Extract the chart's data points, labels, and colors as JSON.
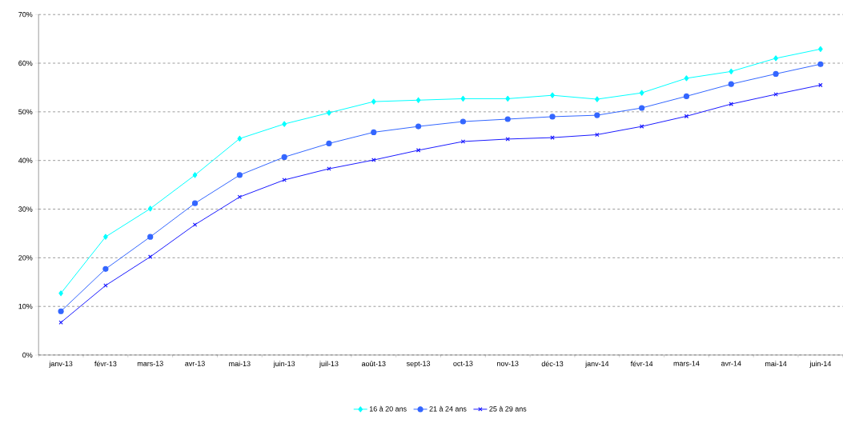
{
  "chart_data": {
    "type": "line",
    "categories": [
      "janv-13",
      "févr-13",
      "mars-13",
      "avr-13",
      "mai-13",
      "juin-13",
      "juil-13",
      "août-13",
      "sept-13",
      "oct-13",
      "nov-13",
      "déc-13",
      "janv-14",
      "févr-14",
      "mars-14",
      "avr-14",
      "mai-14",
      "juin-14"
    ],
    "series": [
      {
        "name": "16 à 20 ans",
        "color": "#00ffff",
        "marker": "diamond",
        "values": [
          12.7,
          24.3,
          30.1,
          37.0,
          44.5,
          47.5,
          49.8,
          52.1,
          52.4,
          52.7,
          52.7,
          53.4,
          52.6,
          53.9,
          56.9,
          58.3,
          61.0,
          62.9
        ]
      },
      {
        "name": "21 à 24 ans",
        "color": "#3366ff",
        "marker": "circle",
        "values": [
          9.0,
          17.7,
          24.3,
          31.2,
          37.0,
          40.7,
          43.5,
          45.8,
          47.0,
          48.0,
          48.5,
          49.0,
          49.3,
          50.8,
          53.2,
          55.7,
          57.8,
          59.8
        ]
      },
      {
        "name": "25 à 29 ans",
        "color": "#1a1aff",
        "marker": "cross",
        "values": [
          6.7,
          14.3,
          20.2,
          26.8,
          32.5,
          36.0,
          38.3,
          40.1,
          42.1,
          43.9,
          44.4,
          44.7,
          45.3,
          47.0,
          49.1,
          51.6,
          53.6,
          55.5
        ]
      }
    ],
    "ylim": [
      0,
      70
    ],
    "yticks": [
      {
        "value": 0,
        "label": "0%"
      },
      {
        "value": 10,
        "label": "10%"
      },
      {
        "value": 20,
        "label": "20%"
      },
      {
        "value": 30,
        "label": "30%"
      },
      {
        "value": 40,
        "label": "40%"
      },
      {
        "value": 50,
        "label": "50%"
      },
      {
        "value": 60,
        "label": "60%"
      },
      {
        "value": 70,
        "label": "70%"
      }
    ],
    "grid": "y",
    "legend": "bottom"
  }
}
